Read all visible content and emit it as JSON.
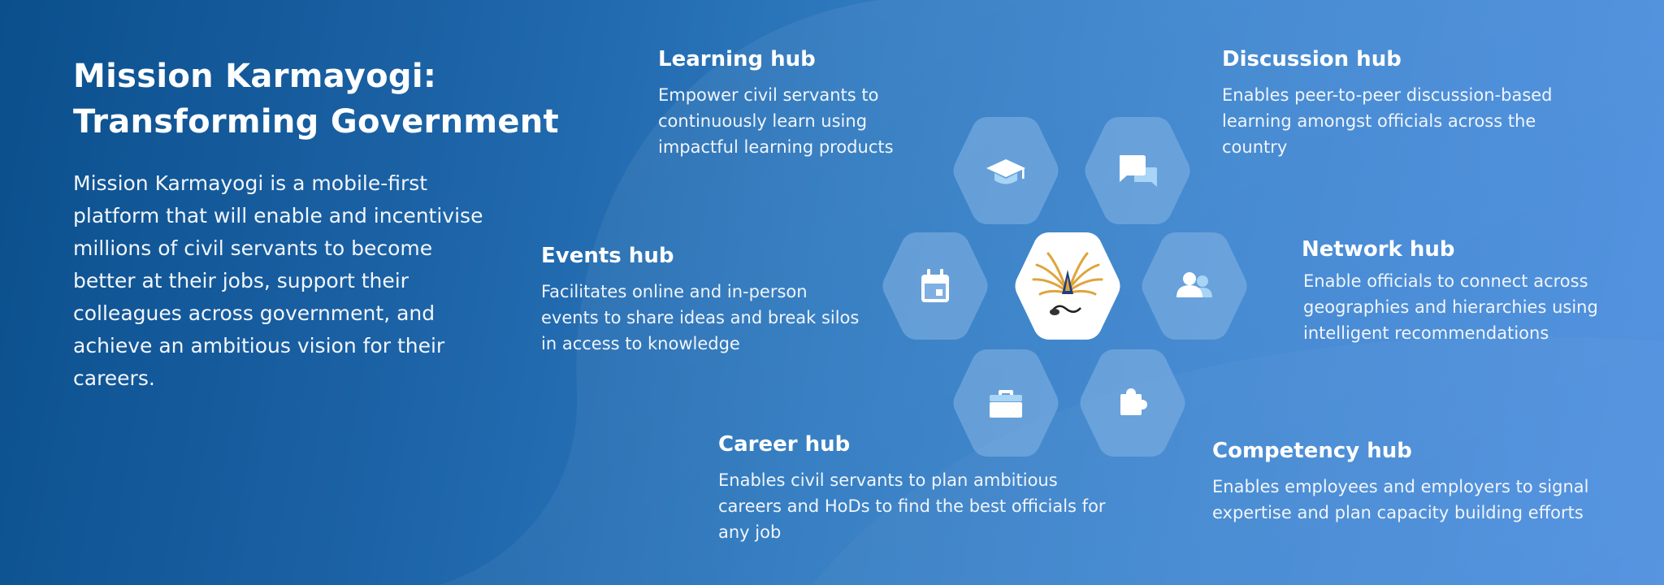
{
  "title_line1": "Mission Karmayogi:",
  "title_line2": "Transforming Government",
  "intro": "Mission Karmayogi is a mobile-first platform that will enable and incentivise millions of civil servants to become better at their jobs, support their colleagues across government, and achieve an ambitious vision for their careers.",
  "hubs": {
    "learning": {
      "title": "Learning hub",
      "text": "Empower civil servants to continuously learn using impactful learning products",
      "icon": "graduation-cap-icon"
    },
    "discussion": {
      "title": "Discussion hub",
      "text": "Enables peer-to-peer discussion-based learning amongst officials across the country",
      "icon": "chat-bubbles-icon"
    },
    "events": {
      "title": "Events hub",
      "text": "Facilitates online and in-person events to share ideas and break silos in access to knowledge",
      "icon": "calendar-icon"
    },
    "network": {
      "title": "Network hub",
      "text": "Enable officials to connect across geographies and hierarchies using intelligent recommendations",
      "icon": "people-icon"
    },
    "career": {
      "title": "Career hub",
      "text": "Enables civil servants to plan ambitious careers and HoDs to find the best officials for any job",
      "icon": "briefcase-icon"
    },
    "competency": {
      "title": "Competency hub",
      "text": "Enables employees and employers to signal expertise and plan capacity building efforts",
      "icon": "puzzle-piece-icon"
    }
  },
  "center_logo": "mission-karmayogi-logo",
  "colors": {
    "hex_fill": "#7fb0e2",
    "icon_white": "#ffffff",
    "icon_accent": "#a8d4f5",
    "logo_gold": "#e0a43a",
    "logo_navy": "#1f3f82"
  }
}
